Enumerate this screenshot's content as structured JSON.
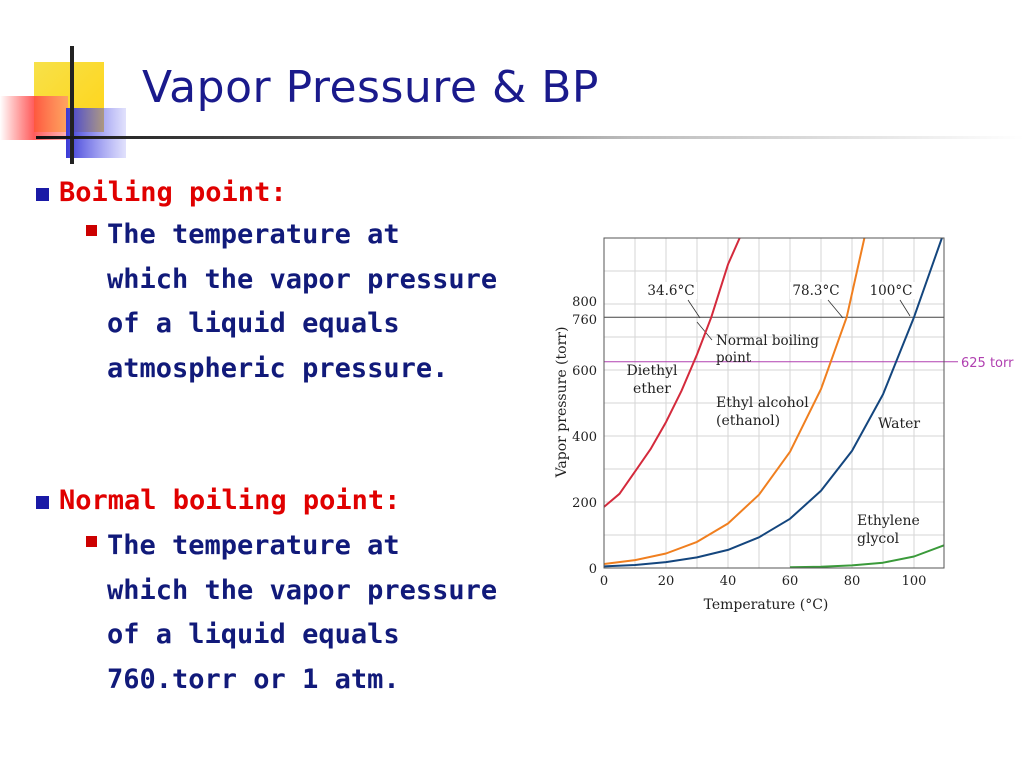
{
  "title": "Vapor Pressure & BP",
  "bullets": [
    {
      "heading": "Boiling point:",
      "detail": "The temperature at\nwhich the vapor pressure\nof a liquid equals\natmospheric pressure."
    },
    {
      "heading": "Normal boiling point:",
      "detail": "The temperature at\nwhich the vapor pressure\nof a liquid equals\n760.torr or 1 atm."
    }
  ],
  "chart_data": {
    "type": "line",
    "title": "",
    "xlabel": "Temperature (°C)",
    "ylabel": "Vapor pressure (torr)",
    "xlim": [
      0,
      108
    ],
    "ylim": [
      0,
      1000
    ],
    "x_ticks": [
      0,
      20,
      40,
      60,
      80,
      100
    ],
    "y_ticks": [
      0,
      200,
      400,
      600,
      760,
      800
    ],
    "grid": true,
    "series": [
      {
        "name": "Diethyl ether",
        "color": "#d42a3c",
        "x": [
          0,
          5,
          10,
          15,
          20,
          25,
          30,
          34.6,
          40,
          44
        ],
        "y": [
          185,
          225,
          292,
          360,
          442,
          537,
          647,
          760,
          920,
          1005
        ]
      },
      {
        "name": "Ethyl alcohol (ethanol)",
        "color": "#f07f1f",
        "x": [
          0,
          10,
          20,
          30,
          40,
          50,
          60,
          70,
          78.3,
          84
        ],
        "y": [
          12,
          24,
          44,
          79,
          135,
          222,
          352,
          542,
          760,
          1000
        ]
      },
      {
        "name": "Water",
        "color": "#14467e",
        "x": [
          0,
          10,
          20,
          30,
          40,
          50,
          60,
          70,
          80,
          90,
          100,
          109
        ],
        "y": [
          5,
          9,
          18,
          32,
          55,
          93,
          149,
          234,
          355,
          526,
          760,
          1000
        ]
      },
      {
        "name": "Ethylene glycol",
        "color": "#3a9a3a",
        "x": [
          60,
          70,
          80,
          90,
          100,
          110
        ],
        "y": [
          2,
          4,
          8,
          16,
          35,
          70
        ]
      }
    ],
    "reference_lines": [
      {
        "y": 760,
        "label": "Normal boiling point",
        "color": "#444444"
      },
      {
        "y": 625,
        "label": "625 torr",
        "color": "#b040b0"
      }
    ],
    "annotations": [
      {
        "text": "34.6°C",
        "x": 34.6,
        "y": 760
      },
      {
        "text": "78.3°C",
        "x": 78.3,
        "y": 760
      },
      {
        "text": "100°C",
        "x": 100,
        "y": 760
      }
    ],
    "curve_labels": [
      {
        "series": 0,
        "lines": [
          "Diethyl",
          "ether"
        ]
      },
      {
        "series": 1,
        "lines": [
          "Ethyl alcohol",
          "(ethanol)"
        ]
      },
      {
        "series": 2,
        "lines": [
          "Water"
        ]
      },
      {
        "series": 3,
        "lines": [
          "Ethylene",
          "glycol"
        ]
      }
    ]
  }
}
